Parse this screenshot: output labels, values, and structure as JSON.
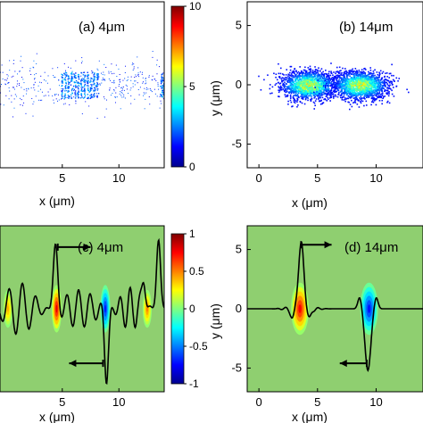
{
  "chart_data": [
    {
      "id": "a",
      "type": "heatmap",
      "panel_label": "(a) 4μm",
      "xlabel": "x (μm)",
      "ylabel": "",
      "xlim": [
        -0.5,
        14
      ],
      "ylim": [
        -7,
        7
      ],
      "xticks": [
        "5",
        "10"
      ],
      "yticks": [],
      "colorbar": {
        "range": [
          0,
          10
        ],
        "ticks": [
          "0",
          "5",
          "10"
        ]
      },
      "features": [
        {
          "kind": "diffuse-cloud",
          "x": [
            -0.5,
            14
          ],
          "y": [
            -2.5,
            2.5
          ],
          "intensity": 0.3
        },
        {
          "kind": "fringe-block",
          "x_center": 6.5,
          "x_width": 3.4,
          "y_halfwidth": 1.1,
          "fringes": 12,
          "intensity": 1.2
        },
        {
          "kind": "fringe-block",
          "x_center": 13.9,
          "x_width": 0.5,
          "y_halfwidth": 1.0,
          "fringes": 3,
          "intensity": 1.0
        }
      ]
    },
    {
      "id": "b",
      "type": "heatmap",
      "panel_label": "(b) 14μm",
      "xlabel": "x (μm)",
      "ylabel": "y (μm)",
      "xlim": [
        -1,
        14
      ],
      "ylim": [
        -7,
        7
      ],
      "xticks": [
        "0",
        "5",
        "10"
      ],
      "yticks": [
        "-5",
        "0",
        "5"
      ],
      "features": [
        {
          "kind": "blob",
          "x_center": 4.2,
          "y_center": 0,
          "sx": 1.2,
          "sy": 0.6,
          "peak": 6
        },
        {
          "kind": "blob",
          "x_center": 8.6,
          "y_center": 0,
          "sx": 1.2,
          "sy": 0.6,
          "peak": 6
        }
      ]
    },
    {
      "id": "c",
      "type": "heatmap",
      "panel_label": "(c) 4μm",
      "xlabel": "x (μm)",
      "ylabel": "",
      "xlim": [
        -0.5,
        14
      ],
      "ylim": [
        -7,
        7
      ],
      "xticks": [
        "5",
        "10"
      ],
      "yticks": [],
      "colorbar": {
        "range": [
          -1,
          1
        ],
        "ticks": [
          "1",
          "0.5",
          "0",
          "-0.5",
          "-1"
        ]
      },
      "features": [
        {
          "kind": "blob",
          "x_center": 4.5,
          "y_center": 0,
          "sx": 0.22,
          "sy": 1.0,
          "peak": 0.95
        },
        {
          "kind": "blob",
          "x_center": 8.8,
          "y_center": 0,
          "sx": 0.22,
          "sy": 1.0,
          "peak": -0.85
        },
        {
          "kind": "blob",
          "x_center": 12.5,
          "y_center": 0,
          "sx": 0.2,
          "sy": 0.8,
          "peak": 0.6
        },
        {
          "kind": "blob",
          "x_center": 0.2,
          "y_center": 0,
          "sx": 0.2,
          "sy": 0.8,
          "peak": 0.5
        }
      ],
      "arrows": [
        {
          "from": [
            4.6,
            5.2
          ],
          "to": [
            7.5,
            5.2
          ]
        },
        {
          "from": [
            8.6,
            -4.6
          ],
          "to": [
            5.6,
            -4.6
          ]
        }
      ]
    },
    {
      "id": "d",
      "type": "heatmap",
      "panel_label": "(d) 14μm",
      "xlabel": "x (μm)",
      "ylabel": "y (μm)",
      "xlim": [
        -1,
        14
      ],
      "ylim": [
        -7,
        7
      ],
      "xticks": [
        "0",
        "5",
        "10"
      ],
      "yticks": [
        "-5",
        "0",
        "5"
      ],
      "features": [
        {
          "kind": "blob",
          "x_center": 3.5,
          "y_center": 0,
          "sx": 0.38,
          "sy": 1.1,
          "peak": 0.9
        },
        {
          "kind": "blob",
          "x_center": 9.4,
          "y_center": 0,
          "sx": 0.38,
          "sy": 1.1,
          "peak": -0.85
        }
      ],
      "arrows": [
        {
          "from": [
            3.6,
            5.4
          ],
          "to": [
            6.2,
            5.4
          ]
        },
        {
          "from": [
            9.2,
            -4.6
          ],
          "to": [
            6.9,
            -4.6
          ]
        }
      ]
    }
  ]
}
